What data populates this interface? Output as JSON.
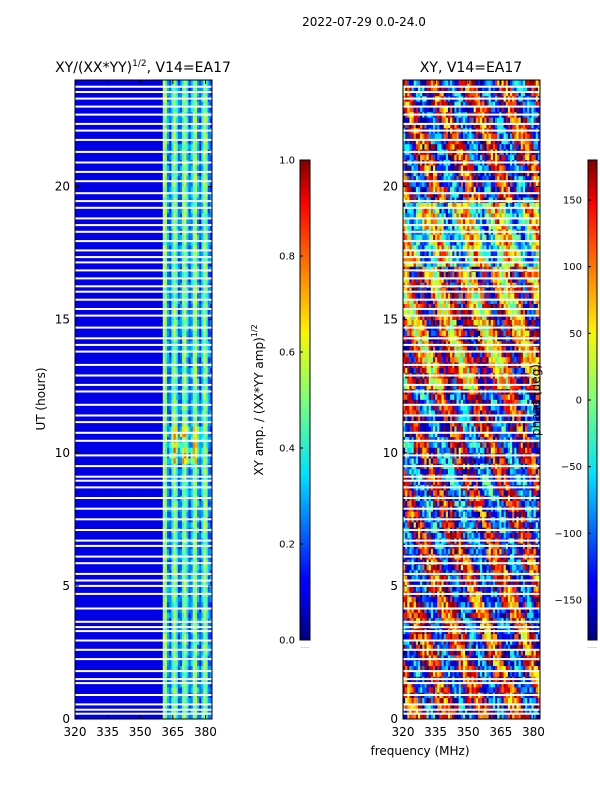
{
  "figure_title": "2022-07-29 0.0-24.0",
  "shared_xlabel": "frequency (MHz)",
  "chart_data": [
    {
      "type": "heatmap",
      "title": "XY/(XX*YY)",
      "title_sup": "1/2",
      "title_suffix": ", V14=EA17",
      "ylabel": "UT (hours)",
      "xlabel": "",
      "xlim": [
        320,
        383
      ],
      "ylim": [
        0,
        24
      ],
      "xticks": [
        320,
        335,
        350,
        365,
        380
      ],
      "yticks": [
        0,
        5,
        10,
        15,
        20
      ],
      "value_quantity": "normalized XY amplitude",
      "typical_value": 0.02,
      "active_band_mhz": [
        360,
        382
      ],
      "active_band_values": [
        0.05,
        0.6
      ],
      "peak_region": {
        "hours": [
          9.5,
          11
        ],
        "mhz": [
          363,
          378
        ],
        "value": 0.7
      },
      "colorbar": {
        "label": "XY amp. / (XX*YY amp)",
        "label_sup": "1/2",
        "range": [
          0.0,
          1.0
        ],
        "ticks": [
          "0.0",
          "0.2",
          "0.4",
          "0.6",
          "0.8",
          "1.0"
        ],
        "extra": "......"
      }
    },
    {
      "type": "heatmap",
      "title": "XY, V14=EA17",
      "ylabel": "",
      "xlabel": "frequency (MHz)",
      "xlim": [
        320,
        383
      ],
      "ylim": [
        0,
        24
      ],
      "xticks": [
        320,
        335,
        350,
        365,
        380
      ],
      "yticks": [
        0,
        5,
        10,
        15,
        20
      ],
      "value_quantity": "XY phase (deg)",
      "phase_range_by_hours": [
        {
          "hours": [
            0,
            6.5
          ],
          "dominant_deg": 180,
          "note": "red with blue streaks"
        },
        {
          "hours": [
            6.5,
            12.5
          ],
          "dominant_deg": -150,
          "note": "blue with yellow-cyan streaks"
        },
        {
          "hours": [
            12.5,
            17
          ],
          "dominant_deg": 120,
          "note": "red/yellow mixture"
        },
        {
          "hours": [
            17,
            19.5
          ],
          "dominant_deg": 0,
          "note": "noisy green/cyan"
        },
        {
          "hours": [
            19.5,
            24
          ],
          "dominant_deg": -170,
          "note": "blue/red bands"
        }
      ],
      "colorbar": {
        "label": "phase (deg)",
        "range": [
          -180,
          180
        ],
        "ticks": [
          "−150",
          "−100",
          "−50",
          "0",
          "50",
          "100",
          "150"
        ],
        "extra": "......"
      }
    }
  ],
  "gap_hours": [
    0.2,
    0.35,
    0.55,
    0.9,
    1.35,
    1.5,
    1.8,
    2.25,
    2.6,
    2.95,
    3.3,
    3.45,
    3.65,
    4.15,
    4.7,
    5.0,
    5.2,
    5.45,
    5.85,
    6.1,
    6.5,
    6.7,
    7.1,
    7.5,
    7.9,
    8.3,
    8.7,
    8.95,
    9.1,
    9.5,
    9.9,
    10.45,
    10.75,
    11.15,
    11.4,
    11.8,
    12.3,
    12.55,
    12.9,
    13.3,
    13.8,
    14.05,
    14.3,
    14.7,
    15.15,
    15.4,
    15.75,
    16.05,
    16.25,
    16.55,
    16.85,
    17.15,
    17.35,
    17.6,
    17.95,
    18.3,
    18.55,
    18.8,
    19.2,
    19.45,
    19.75,
    20.2,
    20.55,
    20.9,
    21.3,
    21.75,
    22.1,
    22.35,
    22.7,
    23.0,
    23.3,
    23.55,
    23.75
  ]
}
